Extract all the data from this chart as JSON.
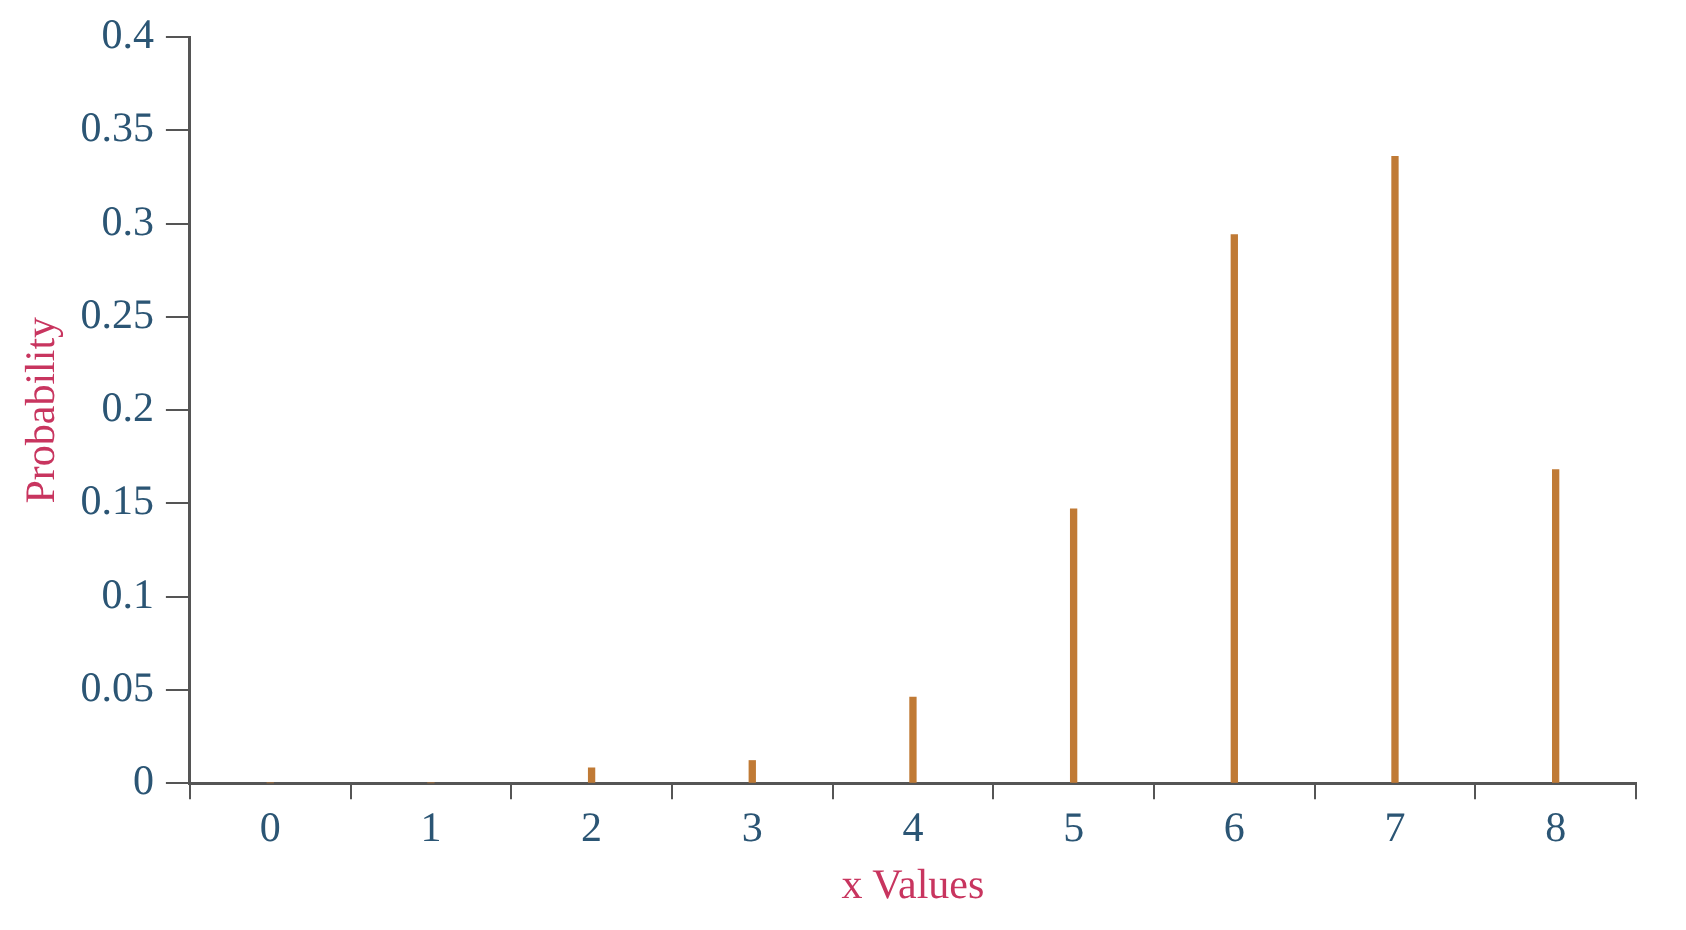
{
  "chart_data": {
    "type": "bar",
    "xlabel": "x Values",
    "ylabel": "Probability",
    "categories": [
      "0",
      "1",
      "2",
      "3",
      "4",
      "5",
      "6",
      "7",
      "8"
    ],
    "values": [
      0,
      0,
      0.008,
      0.012,
      0.046,
      0.147,
      0.294,
      0.336,
      0.168
    ],
    "color": "#c07a35",
    "ylim": [
      0,
      0.4
    ],
    "yticks": [
      0,
      0.05,
      0.1,
      0.15,
      0.2,
      0.25,
      0.3,
      0.35,
      0.4
    ],
    "grid": false,
    "legend": false
  }
}
